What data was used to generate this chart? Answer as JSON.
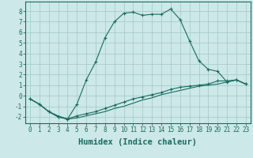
{
  "title": "",
  "xlabel": "Humidex (Indice chaleur)",
  "ylabel": "",
  "xlim": [
    -0.5,
    23.5
  ],
  "ylim": [
    -2.6,
    8.9
  ],
  "background_color": "#cce8e8",
  "grid_color": "#aacccc",
  "line_color": "#1a6b60",
  "line1_x": [
    0,
    1,
    2,
    3,
    4,
    5,
    6,
    7,
    8,
    9,
    10,
    11,
    12,
    13,
    14,
    15,
    16,
    17,
    18,
    19,
    20,
    21,
    22,
    23
  ],
  "line1_y": [
    -0.3,
    -0.8,
    -1.5,
    -2.0,
    -2.2,
    -0.8,
    1.5,
    3.2,
    5.5,
    7.0,
    7.8,
    7.9,
    7.6,
    7.7,
    7.7,
    8.2,
    7.2,
    5.2,
    3.3,
    2.5,
    2.3,
    1.3,
    1.5,
    1.1
  ],
  "line2_x": [
    0,
    1,
    2,
    3,
    4,
    5,
    6,
    7,
    8,
    9,
    10,
    11,
    12,
    13,
    14,
    15,
    16,
    17,
    18,
    19,
    20,
    21,
    22,
    23
  ],
  "line2_y": [
    -0.3,
    -0.8,
    -1.5,
    -2.0,
    -2.2,
    -1.9,
    -1.7,
    -1.5,
    -1.2,
    -0.9,
    -0.6,
    -0.3,
    -0.1,
    0.1,
    0.3,
    0.6,
    0.8,
    0.9,
    1.0,
    1.1,
    1.4,
    1.4,
    1.5,
    1.1
  ],
  "line3_x": [
    0,
    1,
    2,
    3,
    4,
    5,
    6,
    7,
    8,
    9,
    10,
    11,
    12,
    13,
    14,
    15,
    16,
    17,
    18,
    19,
    20,
    21,
    22,
    23
  ],
  "line3_y": [
    -0.3,
    -0.8,
    -1.5,
    -1.9,
    -2.2,
    -2.1,
    -1.9,
    -1.7,
    -1.5,
    -1.2,
    -1.0,
    -0.7,
    -0.4,
    -0.2,
    0.1,
    0.3,
    0.5,
    0.7,
    0.9,
    1.0,
    1.1,
    1.3,
    1.5,
    1.1
  ],
  "xtick_labels": [
    "0",
    "1",
    "2",
    "3",
    "4",
    "5",
    "6",
    "7",
    "8",
    "9",
    "10",
    "11",
    "12",
    "13",
    "14",
    "15",
    "16",
    "17",
    "18",
    "19",
    "20",
    "21",
    "22",
    "23"
  ],
  "ytick_values": [
    -2,
    -1,
    0,
    1,
    2,
    3,
    4,
    5,
    6,
    7,
    8
  ],
  "tick_fontsize": 5.5,
  "xlabel_fontsize": 7.5,
  "marker": "+"
}
